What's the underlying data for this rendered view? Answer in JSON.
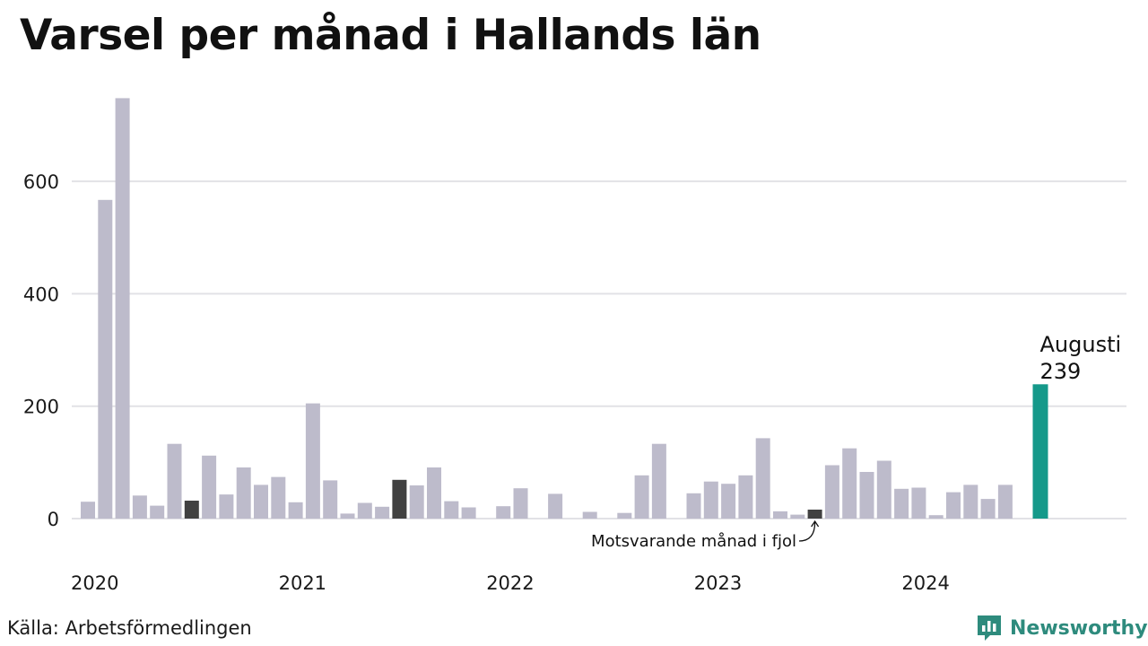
{
  "title": "Varsel per månad i Hallands län",
  "source": "Källa: Arbetsförmedlingen",
  "brand": {
    "name": "Newsworthy",
    "logo_icon": "newsworthy-logo-icon"
  },
  "colors": {
    "bar": "#bdbbcb",
    "highlight_prev_year": "#414141",
    "current": "#15998a",
    "grid": "#e2e2e6"
  },
  "chart_data": {
    "type": "bar",
    "title": "Varsel per månad i Hallands län",
    "xlabel": "",
    "ylabel": "",
    "ylim": [
      0,
      750
    ],
    "yticks": [
      0,
      200,
      400,
      600
    ],
    "x_tick_labels": [
      "2020",
      "2021",
      "2022",
      "2023",
      "2024"
    ],
    "grid": true,
    "categories": [
      "2020-01",
      "2020-02",
      "2020-03",
      "2020-04",
      "2020-05",
      "2020-06",
      "2020-07",
      "2020-08",
      "2020-09",
      "2020-10",
      "2020-11",
      "2020-12",
      "2021-01",
      "2021-02",
      "2021-03",
      "2021-04",
      "2021-05",
      "2021-06",
      "2021-07",
      "2021-08",
      "2021-09",
      "2021-10",
      "2021-11",
      "2021-12",
      "2022-01",
      "2022-02",
      "2022-03",
      "2022-04",
      "2022-05",
      "2022-06",
      "2022-07",
      "2022-08",
      "2022-09",
      "2022-10",
      "2022-11",
      "2022-12",
      "2023-01",
      "2023-02",
      "2023-03",
      "2023-04",
      "2023-05",
      "2023-06",
      "2023-07",
      "2023-08",
      "2023-09",
      "2023-10",
      "2023-11",
      "2023-12",
      "2024-01",
      "2024-02",
      "2024-03",
      "2024-04",
      "2024-05",
      "2024-06",
      "2024-07",
      "2024-08"
    ],
    "values": [
      30,
      567,
      748,
      41,
      23,
      133,
      32,
      112,
      43,
      91,
      60,
      74,
      29,
      205,
      68,
      9,
      28,
      21,
      69,
      59,
      91,
      31,
      20,
      0,
      22,
      54,
      0,
      44,
      0,
      12,
      0,
      10,
      77,
      133,
      0,
      45,
      66,
      62,
      77,
      143,
      13,
      7,
      16,
      95,
      125,
      83,
      103,
      53,
      55,
      6,
      47,
      60,
      35,
      60,
      0,
      239
    ],
    "highlight_prev_year_index": 42,
    "highlight_prev_year_extra_index": 18,
    "highlight_prev_year_2020_index": 6,
    "current_index": 55,
    "annotations": {
      "current_month": "Augusti",
      "current_value": "239",
      "prev_year_note": "Motsvarande månad i fjol"
    }
  }
}
